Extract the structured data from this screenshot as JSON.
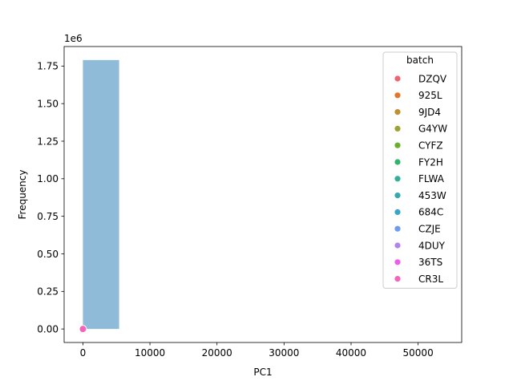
{
  "chart_data": {
    "type": "histogram",
    "xlabel": "PC1",
    "ylabel": "Frequency",
    "y_offset_label": "1e6",
    "xlim": [
      -2800,
      56500
    ],
    "ylim": [
      -0.09,
      1.88
    ],
    "x_ticks": [
      0,
      10000,
      20000,
      30000,
      40000,
      50000
    ],
    "x_tick_labels": [
      "0",
      "10000",
      "20000",
      "30000",
      "40000",
      "50000"
    ],
    "y_ticks": [
      0.0,
      0.25,
      0.5,
      0.75,
      1.0,
      1.25,
      1.5,
      1.75
    ],
    "y_tick_labels": [
      "0.00",
      "0.25",
      "0.50",
      "0.75",
      "1.00",
      "1.25",
      "1.50",
      "1.75"
    ],
    "bars": [
      {
        "x0": 0,
        "x1": 5400,
        "height": 1.79,
        "color": "#8fbbd9"
      }
    ],
    "points": [
      {
        "x": 0,
        "y": 0.0,
        "color": "#f564b8"
      }
    ],
    "legend": {
      "title": "batch",
      "placement": "upper right",
      "entries": [
        {
          "label": "DZQV",
          "color": "#f0646f"
        },
        {
          "label": "925L",
          "color": "#e2752a"
        },
        {
          "label": "9JD4",
          "color": "#c1902e"
        },
        {
          "label": "G4YW",
          "color": "#9da32e"
        },
        {
          "label": "CYFZ",
          "color": "#6bad2e"
        },
        {
          "label": "FY2H",
          "color": "#32b36a"
        },
        {
          "label": "FLWA",
          "color": "#33ae97"
        },
        {
          "label": "453W",
          "color": "#35aaae"
        },
        {
          "label": "684C",
          "color": "#38a6c4"
        },
        {
          "label": "CZJE",
          "color": "#6c9bef"
        },
        {
          "label": "4DUY",
          "color": "#b084f0"
        },
        {
          "label": "36TS",
          "color": "#ee5de9"
        },
        {
          "label": "CR3L",
          "color": "#f564b8"
        }
      ]
    }
  }
}
